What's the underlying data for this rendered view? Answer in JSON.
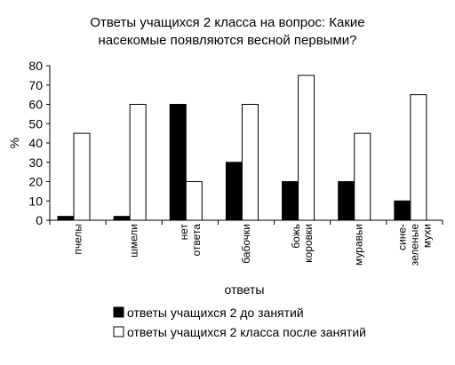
{
  "chart_data": {
    "type": "bar",
    "title_lines": [
      "Ответы учащихся 2 класса на вопрос: Какие",
      "насекомые появляются весной первыми?"
    ],
    "xlabel": "ответы",
    "ylabel": "%",
    "ylim": [
      0,
      80
    ],
    "yticks": [
      0,
      10,
      20,
      30,
      40,
      50,
      60,
      70,
      80
    ],
    "categories": [
      [
        "пчелы"
      ],
      [
        "шмели"
      ],
      [
        "нет",
        "ответа"
      ],
      [
        "бабочки"
      ],
      [
        "божь",
        "коровки"
      ],
      [
        "муравьи"
      ],
      [
        "сине-",
        "зеленые",
        "мухи"
      ]
    ],
    "series": [
      {
        "name": "ответы учащихся 2 до занятий",
        "color": "#000000",
        "values": [
          2,
          2,
          60,
          30,
          20,
          20,
          10
        ]
      },
      {
        "name": "ответы учащихся 2 класса после занятий",
        "color": "#ffffff",
        "values": [
          45,
          60,
          20,
          60,
          75,
          45,
          65
        ]
      }
    ],
    "grid": false,
    "legend_position": "bottom"
  }
}
